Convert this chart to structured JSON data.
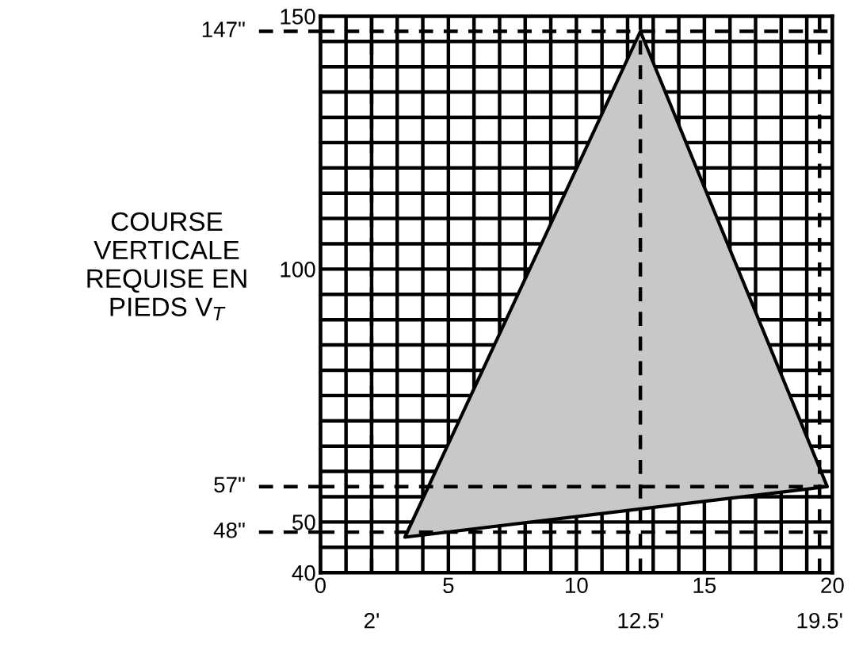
{
  "chart_data": {
    "type": "area",
    "ylabel": "COURSE\nVERTICALE\nREQUISE EN\nPIEDS V$_{T}$",
    "series": [
      {
        "x": [
          3.3,
          12.5,
          19.8,
          3.3
        ],
        "values": [
          47,
          147,
          57,
          47
        ],
        "color": "#c8c8c8"
      }
    ],
    "xlim": [
      0,
      20
    ],
    "ylim": [
      40,
      150
    ],
    "xticks": [
      0,
      {
        "value": 1,
        "label": null
      },
      {
        "value": 2,
        "label": null
      },
      {
        "value": 3,
        "label": null
      },
      {
        "value": 4,
        "label": null
      },
      5,
      {
        "value": 6,
        "label": null
      },
      {
        "value": 7,
        "label": null
      },
      {
        "value": 8,
        "label": null
      },
      {
        "value": 9,
        "label": null
      },
      10,
      {
        "value": 11,
        "label": null
      },
      {
        "value": 12,
        "label": null
      },
      {
        "value": 13,
        "label": null
      },
      {
        "value": 14,
        "label": null
      },
      15,
      {
        "value": 16,
        "label": null
      },
      {
        "value": 17,
        "label": null
      },
      {
        "value": 18,
        "label": null
      },
      {
        "value": 19,
        "label": null
      },
      20
    ],
    "yticks": [
      40,
      {
        "value": 45,
        "label": null
      },
      50,
      {
        "value": 55,
        "label": null
      },
      {
        "value": 60,
        "label": null
      },
      {
        "value": 65,
        "label": null
      },
      {
        "value": 70,
        "label": null
      },
      {
        "value": 75,
        "label": null
      },
      {
        "value": 80,
        "label": null
      },
      {
        "value": 85,
        "label": null
      },
      {
        "value": 90,
        "label": null
      },
      {
        "value": 95,
        "label": null
      },
      100,
      {
        "value": 105,
        "label": null
      },
      {
        "value": 110,
        "label": null
      },
      {
        "value": 115,
        "label": null
      },
      {
        "value": 120,
        "label": null
      },
      {
        "value": 125,
        "label": null
      },
      {
        "value": 130,
        "label": null
      },
      {
        "value": 135,
        "label": null
      },
      {
        "value": 140,
        "label": null
      },
      {
        "value": 145,
        "label": null
      },
      150
    ],
    "grid": true,
    "ref_lines": [
      {
        "axis": "y",
        "value": 147,
        "label": "147\"",
        "line_style": "dashed"
      },
      {
        "axis": "y",
        "value": 57,
        "label": "57\"",
        "line_style": "dashed"
      },
      {
        "axis": "y",
        "value": 48,
        "label": "48\"",
        "line_style": "dashed"
      },
      {
        "axis": "x",
        "value": 2,
        "label": "2'",
        "line_style": "dashed"
      },
      {
        "axis": "x",
        "value": 12.5,
        "label": "12.5'",
        "line_style": "dashed"
      },
      {
        "axis": "x",
        "value": 19.5,
        "label": "19.5'",
        "line_style": "dashed"
      }
    ]
  }
}
